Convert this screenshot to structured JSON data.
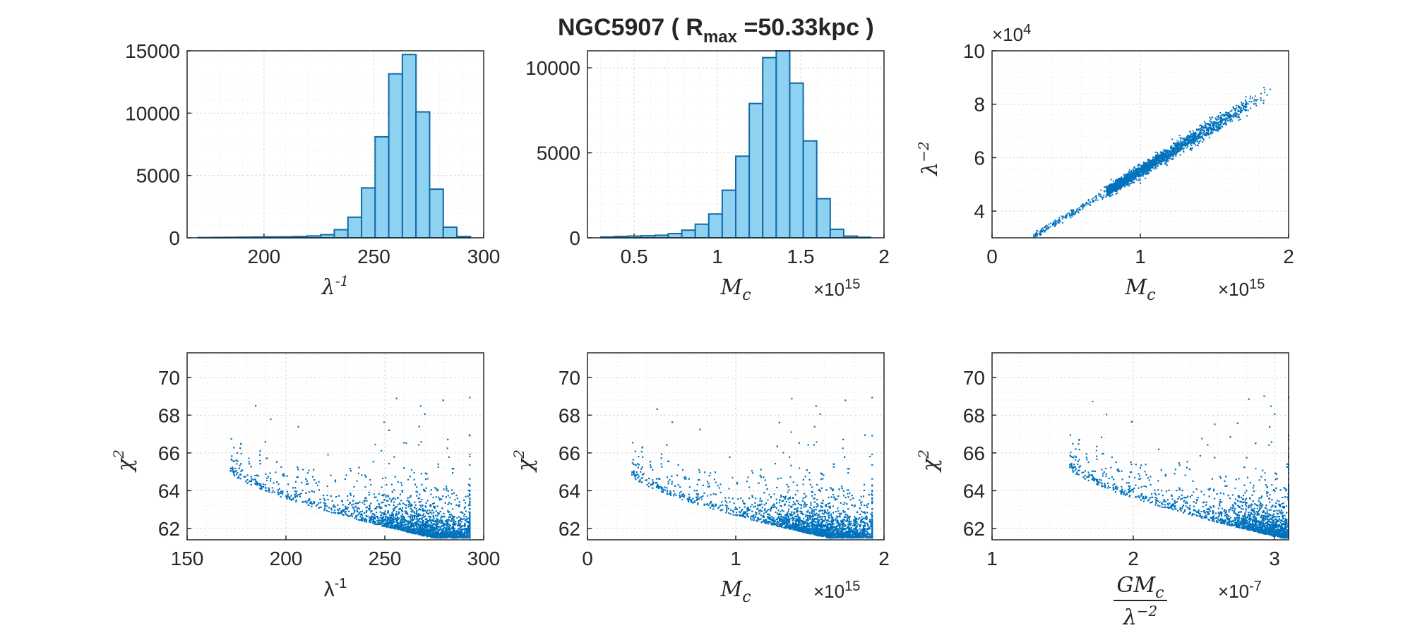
{
  "figure": {
    "title_main": "NGC5907 (  R",
    "title_sub": "max",
    "title_tail": " =50.33kpc  )",
    "colors": {
      "bar_fill": "#8fd1f0",
      "bar_edge": "#0f6aa8",
      "marker": "#0072bd",
      "axis": "#262626"
    }
  },
  "chart_data": [
    {
      "id": "hist-lambda-inv",
      "type": "bar",
      "xlabel": "λ",
      "xlabel_sup": "-1",
      "xlim": [
        165,
        300
      ],
      "ylim": [
        0,
        15000
      ],
      "xticks": [
        200,
        250,
        300
      ],
      "xtick_labels": [
        "200",
        "250",
        "300"
      ],
      "yticks": [
        0,
        5000,
        10000,
        15000
      ],
      "ytick_labels": [
        "0",
        "5000",
        "10000",
        "15000"
      ],
      "bin_edges": [
        170,
        176.2,
        182.4,
        188.6,
        194.8,
        201,
        207.2,
        213.4,
        219.6,
        225.8,
        232,
        238.2,
        244.4,
        250.6,
        256.8,
        263,
        269.2,
        275.4,
        281.6,
        287.8,
        294
      ],
      "values": [
        20,
        30,
        40,
        50,
        60,
        70,
        80,
        100,
        150,
        250,
        650,
        1650,
        4000,
        8100,
        13150,
        14700,
        10100,
        3900,
        850,
        100
      ]
    },
    {
      "id": "hist-mc",
      "type": "bar",
      "xlabel": "M",
      "xlabel_sub": "c",
      "exponent_base": "×10",
      "exponent": "15",
      "xlim": [
        0.22,
        2.0
      ],
      "ylim": [
        0,
        11000
      ],
      "xticks": [
        0.5,
        1,
        1.5,
        2
      ],
      "xtick_labels": [
        "0.5",
        "1",
        "1.5",
        "2"
      ],
      "yticks": [
        0,
        5000,
        10000
      ],
      "ytick_labels": [
        "0",
        "5000",
        "10000"
      ],
      "bin_edges": [
        0.3,
        0.381,
        0.462,
        0.543,
        0.624,
        0.705,
        0.786,
        0.867,
        0.948,
        1.029,
        1.11,
        1.191,
        1.272,
        1.353,
        1.434,
        1.515,
        1.596,
        1.677,
        1.758,
        1.839,
        1.92
      ],
      "values": [
        50,
        80,
        100,
        120,
        150,
        250,
        450,
        800,
        1400,
        2800,
        4800,
        7900,
        10600,
        11000,
        9100,
        5700,
        2300,
        500,
        100,
        30
      ]
    },
    {
      "id": "scatter-mc-lambda2",
      "type": "scatter",
      "xlabel": "M",
      "xlabel_sub": "c",
      "ylabel": "λ",
      "ylabel_sup": "−2",
      "exponent_base": "×10",
      "exponent": "15",
      "y_exponent_base": "×10",
      "y_exponent": "4",
      "xlim": [
        0,
        2
      ],
      "ylim": [
        3,
        10
      ],
      "xticks": [
        0,
        1,
        2
      ],
      "xtick_labels": [
        "0",
        "1",
        "2"
      ],
      "yticks": [
        4,
        6,
        8,
        10
      ],
      "ytick_labels": [
        "4",
        "6",
        "8",
        "10"
      ],
      "trend": {
        "x_range": [
          0.28,
          1.92
        ],
        "y_at_x0": 2.1,
        "slope": 3.4,
        "spread": 0.15,
        "samples": 2400
      }
    },
    {
      "id": "scatter-chi2-lambda-inv",
      "type": "scatter",
      "xlabel": "λ",
      "xlabel_sup": "-1",
      "ylabel": "χ",
      "ylabel_sup": "2",
      "xlim": [
        150,
        300
      ],
      "ylim": [
        61.4,
        71.3
      ],
      "xticks": [
        150,
        200,
        250,
        300
      ],
      "xtick_labels": [
        "150",
        "200",
        "250",
        "300"
      ],
      "yticks": [
        62,
        64,
        66,
        68,
        70
      ],
      "ytick_labels": [
        "62",
        "64",
        "66",
        "68",
        "70"
      ],
      "envelope": {
        "x_min": 172,
        "x_max": 293,
        "x_peak_density": 274,
        "y_floor_at_min": 65.0,
        "y_floor_at_peak": 61.5,
        "y_max": 69.6
      }
    },
    {
      "id": "scatter-chi2-mc",
      "type": "scatter",
      "xlabel": "M",
      "xlabel_sub": "c",
      "ylabel": "χ",
      "ylabel_sup": "2",
      "exponent_base": "×10",
      "exponent": "15",
      "xlim": [
        0,
        2
      ],
      "ylim": [
        61.4,
        71.3
      ],
      "xticks": [
        0,
        1,
        2
      ],
      "xtick_labels": [
        "0",
        "1",
        "2"
      ],
      "yticks": [
        62,
        64,
        66,
        68,
        70
      ],
      "ytick_labels": [
        "62",
        "64",
        "66",
        "68",
        "70"
      ],
      "envelope": {
        "x_min": 0.3,
        "x_max": 1.92,
        "x_peak_density": 1.62,
        "y_floor_at_min": 64.8,
        "y_floor_at_peak": 61.5,
        "y_max": 69.6
      }
    },
    {
      "id": "scatter-chi2-gmc",
      "type": "scatter",
      "xlabel_num": "GM",
      "xlabel_num_sub": "c",
      "xlabel_den": "λ",
      "xlabel_den_sup": "−2",
      "ylabel": "χ",
      "ylabel_sup": "2",
      "exponent_base": "×10",
      "exponent": "-7",
      "xlim": [
        1,
        3.1
      ],
      "ylim": [
        61.4,
        71.3
      ],
      "xticks": [
        1,
        2,
        3
      ],
      "xtick_labels": [
        "1",
        "2",
        "3"
      ],
      "yticks": [
        62,
        64,
        66,
        68,
        70
      ],
      "ytick_labels": [
        "62",
        "64",
        "66",
        "68",
        "70"
      ],
      "envelope": {
        "x_min": 1.55,
        "x_max": 3.1,
        "x_peak_density": 3.05,
        "y_floor_at_min": 65.2,
        "y_floor_at_peak": 61.5,
        "y_max": 69.6
      }
    }
  ]
}
